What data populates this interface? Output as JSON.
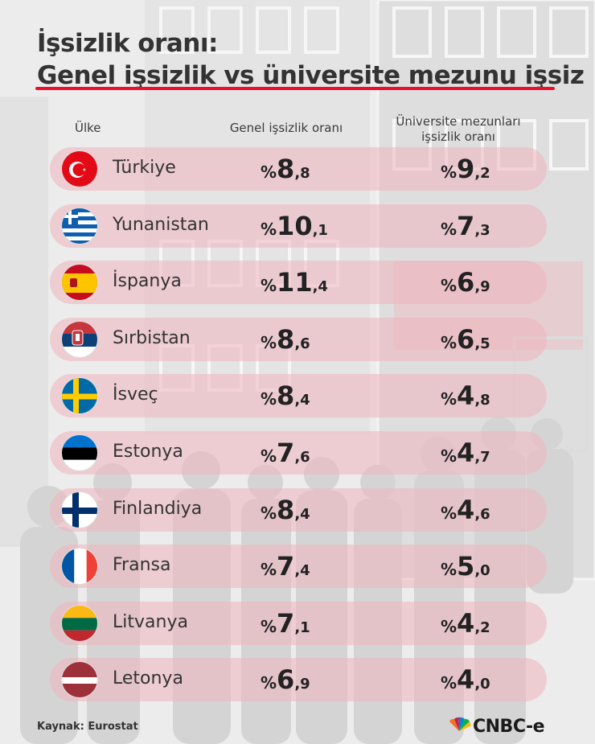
{
  "title_line1": "İşsizlik oranı:",
  "title_line2": "Genel işsizlik vs üniversite mezunu işsiz",
  "columns": {
    "country": "Ülke",
    "general": "Genel işsizlik oranı",
    "graduate_line1": "Üniversite mezunları",
    "graduate_line2": "işsizlik oranı"
  },
  "percent_sign": "%",
  "chart_data": {
    "type": "table",
    "columns": [
      "Ülke",
      "Genel işsizlik oranı",
      "Üniversite mezunları işsizlik oranı"
    ],
    "rows": [
      {
        "country": "Türkiye",
        "general": "8,8",
        "graduate": "9,2",
        "flag": "turkey-flag-icon"
      },
      {
        "country": "Yunanistan",
        "general": "10,1",
        "graduate": "7,3",
        "flag": "greece-flag-icon"
      },
      {
        "country": "İspanya",
        "general": "11,4",
        "graduate": "6,9",
        "flag": "spain-flag-icon"
      },
      {
        "country": "Sırbistan",
        "general": "8,6",
        "graduate": "6,5",
        "flag": "serbia-flag-icon"
      },
      {
        "country": "İsveç",
        "general": "8,4",
        "graduate": "4,8",
        "flag": "sweden-flag-icon"
      },
      {
        "country": "Estonya",
        "general": "7,6",
        "graduate": "4,7",
        "flag": "estonia-flag-icon"
      },
      {
        "country": "Finlandiya",
        "general": "8,4",
        "graduate": "4,6",
        "flag": "finland-flag-icon"
      },
      {
        "country": "Fransa",
        "general": "7,4",
        "graduate": "5,0",
        "flag": "france-flag-icon"
      },
      {
        "country": "Litvanya",
        "general": "7,1",
        "graduate": "4,2",
        "flag": "lithuania-flag-icon"
      },
      {
        "country": "Letonya",
        "general": "6,9",
        "graduate": "4,0",
        "flag": "latvia-flag-icon"
      }
    ]
  },
  "source": "Kaynak: Eurostat",
  "logo_text": "CNBC-e",
  "colors": {
    "accent": "#e8102c",
    "row_bg": "#eeb4be"
  }
}
